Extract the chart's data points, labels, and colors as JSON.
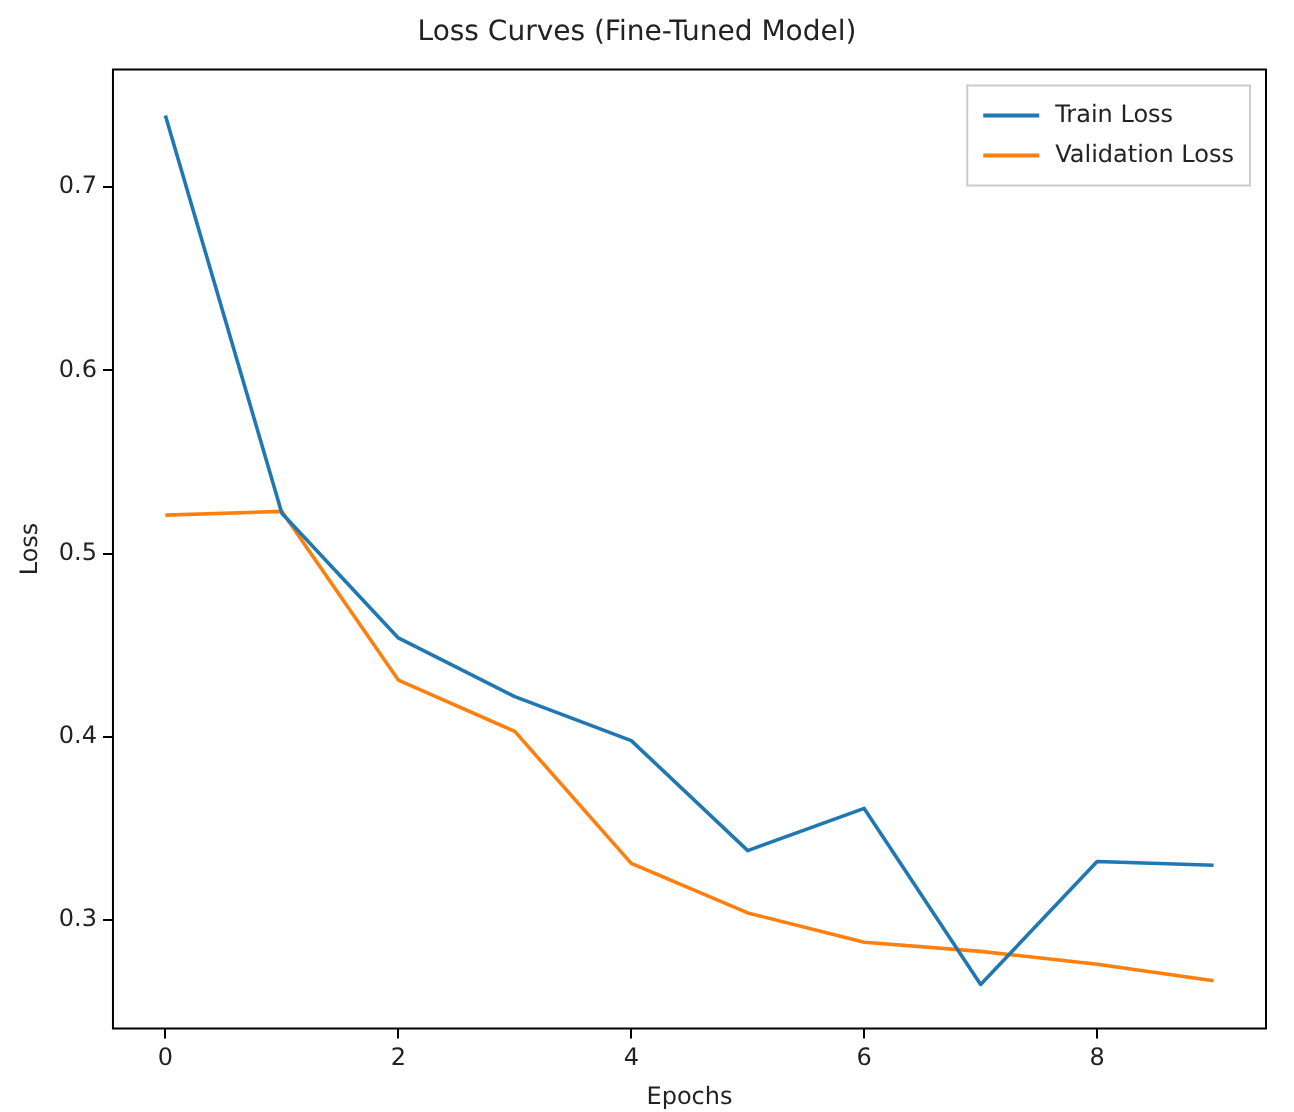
{
  "chart_data": {
    "type": "line",
    "title": "Loss Curves (Fine-Tuned Model)",
    "xlabel": "Epochs",
    "ylabel": "Loss",
    "x": [
      0,
      1,
      2,
      3,
      4,
      5,
      6,
      7,
      8,
      9
    ],
    "series": [
      {
        "name": "Train Loss",
        "color": "#1f77b4",
        "values": [
          0.739,
          0.522,
          0.454,
          0.422,
          0.398,
          0.338,
          0.361,
          0.265,
          0.332,
          0.33
        ]
      },
      {
        "name": "Validation Loss",
        "color": "#ff7f0e",
        "values": [
          0.521,
          0.523,
          0.431,
          0.403,
          0.331,
          0.304,
          0.288,
          0.283,
          0.276,
          0.267
        ]
      }
    ],
    "xlim": [
      -0.45,
      9.45
    ],
    "xticks": [
      0,
      2,
      4,
      6,
      8
    ],
    "ylim": [
      0.241,
      0.764
    ],
    "yticks": [
      0.3,
      0.4,
      0.5,
      0.6,
      0.7
    ],
    "grid": false,
    "legend": "top right",
    "marker": "none",
    "line_style": "solid"
  }
}
